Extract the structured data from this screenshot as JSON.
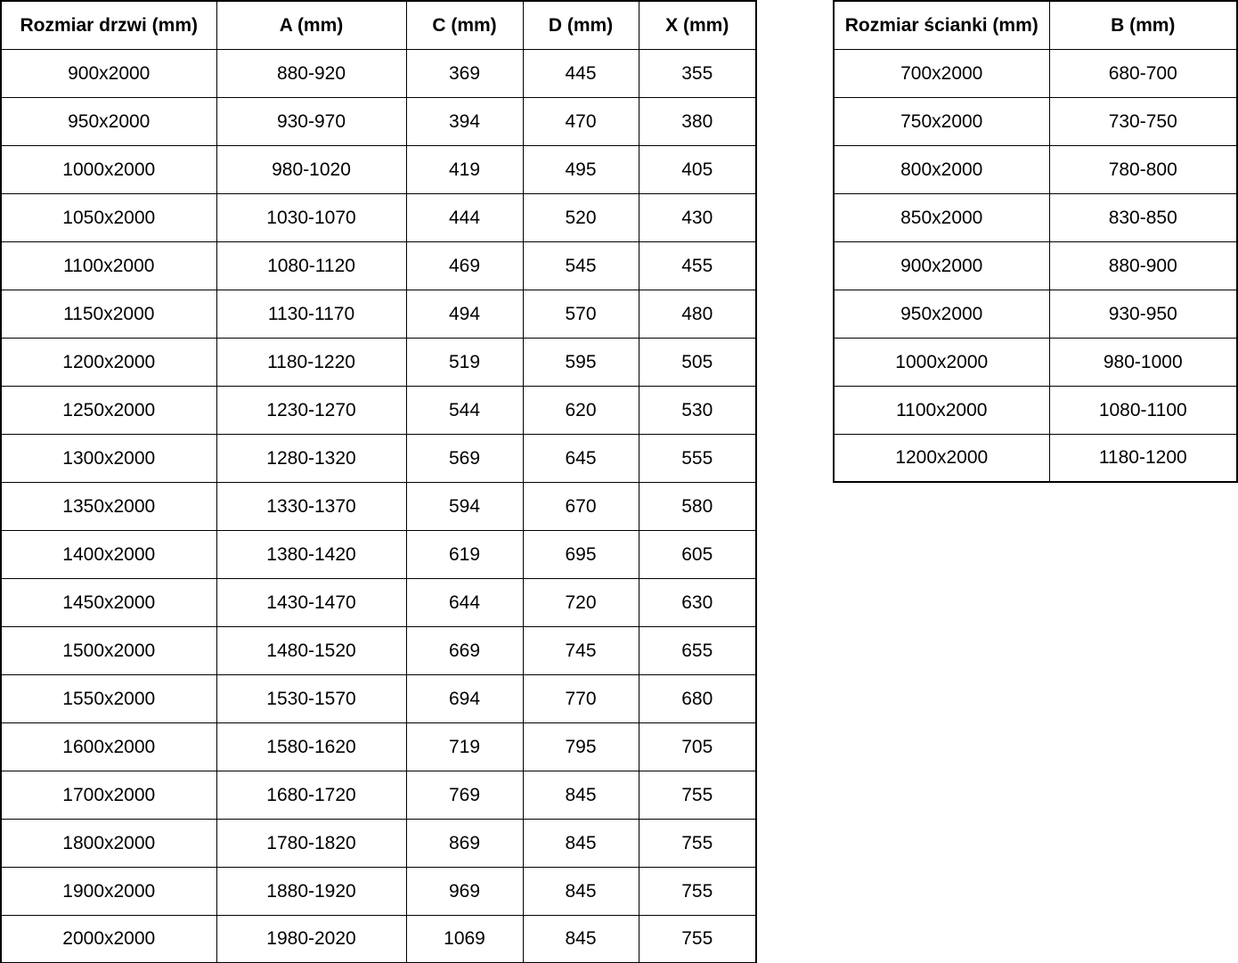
{
  "colors": {
    "background": "#ffffff",
    "border": "#000000",
    "text": "#000000"
  },
  "tables": [
    {
      "name": "door-sizes",
      "headers": [
        "Rozmiar drzwi (mm)",
        "A (mm)",
        "C (mm)",
        "D (mm)",
        "X (mm)"
      ],
      "rows": [
        [
          "900x2000",
          "880-920",
          "369",
          "445",
          "355"
        ],
        [
          "950x2000",
          "930-970",
          "394",
          "470",
          "380"
        ],
        [
          "1000x2000",
          "980-1020",
          "419",
          "495",
          "405"
        ],
        [
          "1050x2000",
          "1030-1070",
          "444",
          "520",
          "430"
        ],
        [
          "1100x2000",
          "1080-1120",
          "469",
          "545",
          "455"
        ],
        [
          "1150x2000",
          "1130-1170",
          "494",
          "570",
          "480"
        ],
        [
          "1200x2000",
          "1180-1220",
          "519",
          "595",
          "505"
        ],
        [
          "1250x2000",
          "1230-1270",
          "544",
          "620",
          "530"
        ],
        [
          "1300x2000",
          "1280-1320",
          "569",
          "645",
          "555"
        ],
        [
          "1350x2000",
          "1330-1370",
          "594",
          "670",
          "580"
        ],
        [
          "1400x2000",
          "1380-1420",
          "619",
          "695",
          "605"
        ],
        [
          "1450x2000",
          "1430-1470",
          "644",
          "720",
          "630"
        ],
        [
          "1500x2000",
          "1480-1520",
          "669",
          "745",
          "655"
        ],
        [
          "1550x2000",
          "1530-1570",
          "694",
          "770",
          "680"
        ],
        [
          "1600x2000",
          "1580-1620",
          "719",
          "795",
          "705"
        ],
        [
          "1700x2000",
          "1680-1720",
          "769",
          "845",
          "755"
        ],
        [
          "1800x2000",
          "1780-1820",
          "869",
          "845",
          "755"
        ],
        [
          "1900x2000",
          "1880-1920",
          "969",
          "845",
          "755"
        ],
        [
          "2000x2000",
          "1980-2020",
          "1069",
          "845",
          "755"
        ]
      ]
    },
    {
      "name": "wall-sizes",
      "headers": [
        "Rozmiar ścianki (mm)",
        "B (mm)"
      ],
      "rows": [
        [
          "700x2000",
          "680-700"
        ],
        [
          "750x2000",
          "730-750"
        ],
        [
          "800x2000",
          "780-800"
        ],
        [
          "850x2000",
          "830-850"
        ],
        [
          "900x2000",
          "880-900"
        ],
        [
          "950x2000",
          "930-950"
        ],
        [
          "1000x2000",
          "980-1000"
        ],
        [
          "1100x2000",
          "1080-1100"
        ],
        [
          "1200x2000",
          "1180-1200"
        ]
      ]
    }
  ]
}
